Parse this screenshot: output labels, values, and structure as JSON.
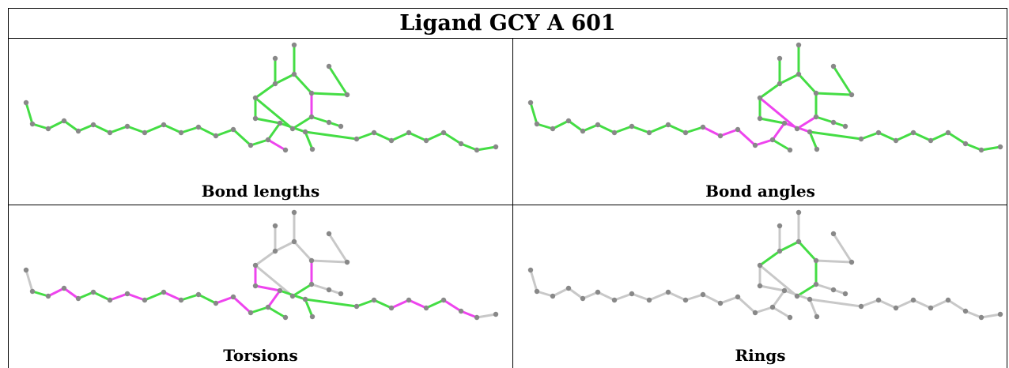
{
  "title": "Ligand GCY A 601",
  "panels": [
    {
      "caption": "Bond lengths"
    },
    {
      "caption": "Bond angles"
    },
    {
      "caption": "Torsions"
    },
    {
      "caption": "Rings"
    }
  ],
  "colors": {
    "good": "#44dd44",
    "outlier": "#ee44ee",
    "neutral": "#c8c8c8",
    "atom": "#888888"
  }
}
